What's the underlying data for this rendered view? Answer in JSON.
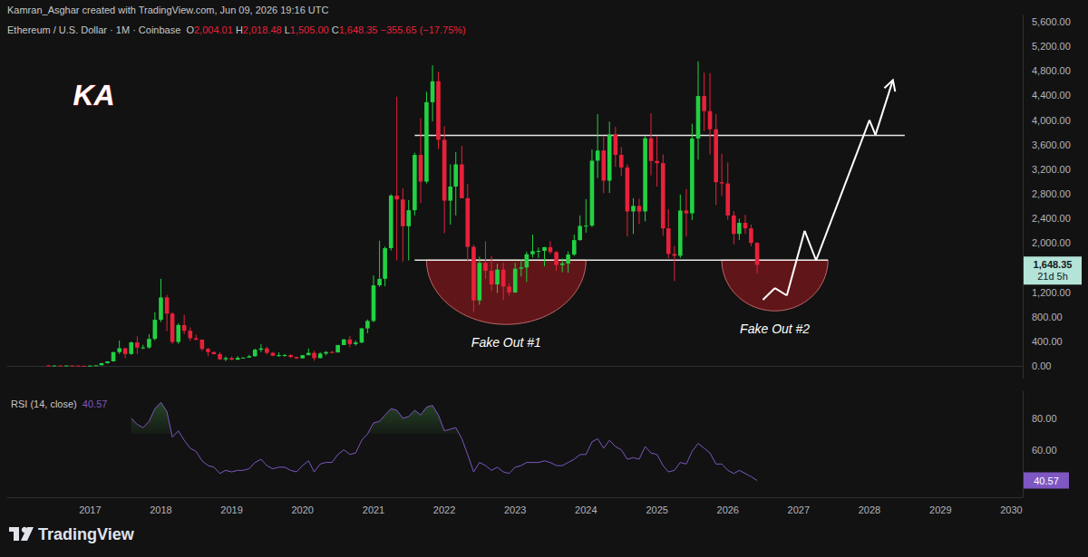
{
  "chart_data": {
    "type": "candlestick",
    "subtitle": "Kamran_Asghar created with TradingView.com, Jun 09, 2026 19:16 UTC",
    "title": "Ethereum / U.S. Dollar · 1M · Coinbase",
    "ohlc_header": [
      {
        "key": "O",
        "value": "2,004.01"
      },
      {
        "key": "H",
        "value": "2,018.48"
      },
      {
        "key": "L",
        "value": "1,505.00"
      },
      {
        "key": "C",
        "value": "1,648.35"
      }
    ],
    "change_label": "−355.65 (−17.75%)",
    "up_color": "#22d142",
    "down_color": "#e8213a",
    "grid": false,
    "x": [
      "2016-06",
      "2016-07",
      "2016-08",
      "2016-09",
      "2016-10",
      "2016-11",
      "2016-12",
      "2017-01",
      "2017-02",
      "2017-03",
      "2017-04",
      "2017-05",
      "2017-06",
      "2017-07",
      "2017-08",
      "2017-09",
      "2017-10",
      "2017-11",
      "2017-12",
      "2018-01",
      "2018-02",
      "2018-03",
      "2018-04",
      "2018-05",
      "2018-06",
      "2018-07",
      "2018-08",
      "2018-09",
      "2018-10",
      "2018-11",
      "2018-12",
      "2019-01",
      "2019-02",
      "2019-03",
      "2019-04",
      "2019-05",
      "2019-06",
      "2019-07",
      "2019-08",
      "2019-09",
      "2019-10",
      "2019-11",
      "2019-12",
      "2020-01",
      "2020-02",
      "2020-03",
      "2020-04",
      "2020-05",
      "2020-06",
      "2020-07",
      "2020-08",
      "2020-09",
      "2020-10",
      "2020-11",
      "2020-12",
      "2021-01",
      "2021-02",
      "2021-03",
      "2021-04",
      "2021-05",
      "2021-06",
      "2021-07",
      "2021-08",
      "2021-09",
      "2021-10",
      "2021-11",
      "2021-12",
      "2022-01",
      "2022-02",
      "2022-03",
      "2022-04",
      "2022-05",
      "2022-06",
      "2022-07",
      "2022-08",
      "2022-09",
      "2022-10",
      "2022-11",
      "2022-12",
      "2023-01",
      "2023-02",
      "2023-03",
      "2023-04",
      "2023-05",
      "2023-06",
      "2023-07",
      "2023-08",
      "2023-09",
      "2023-10",
      "2023-11",
      "2023-12",
      "2024-01",
      "2024-02",
      "2024-03",
      "2024-04",
      "2024-05",
      "2024-06",
      "2024-07",
      "2024-08",
      "2024-09",
      "2024-10",
      "2024-11",
      "2024-12",
      "2025-01",
      "2025-02",
      "2025-03",
      "2025-04",
      "2025-05",
      "2025-06",
      "2025-07",
      "2025-08",
      "2025-09",
      "2025-10",
      "2025-11",
      "2025-12",
      "2026-01",
      "2026-02",
      "2026-03",
      "2026-04",
      "2026-05",
      "2026-06"
    ],
    "ohlc": [
      [
        14.0,
        21.5,
        11.3,
        12.4
      ],
      [
        12.4,
        14.9,
        9.9,
        12.6
      ],
      [
        12.6,
        12.8,
        10.0,
        11.2
      ],
      [
        11.2,
        13.5,
        11.0,
        13.1
      ],
      [
        13.1,
        13.3,
        10.2,
        11.0
      ],
      [
        11.0,
        11.3,
        8.4,
        8.6
      ],
      [
        8.6,
        9.0,
        6.0,
        8.0
      ],
      [
        8.0,
        11.4,
        7.8,
        10.7
      ],
      [
        10.7,
        16.2,
        10.4,
        16.1
      ],
      [
        16.1,
        55.0,
        15.8,
        50.6
      ],
      [
        50.6,
        82.0,
        43.0,
        80.0
      ],
      [
        80,
        235,
        77,
        230
      ],
      [
        230,
        420,
        200,
        292
      ],
      [
        292,
        300,
        130,
        200
      ],
      [
        200,
        400,
        185,
        388
      ],
      [
        388,
        485,
        200,
        303
      ],
      [
        303,
        350,
        280,
        305
      ],
      [
        305,
        520,
        285,
        445
      ],
      [
        445,
        880,
        420,
        755
      ],
      [
        755,
        1420,
        720,
        1118
      ],
      [
        1118,
        1160,
        570,
        855
      ],
      [
        855,
        880,
        365,
        395
      ],
      [
        395,
        700,
        365,
        670
      ],
      [
        670,
        835,
        520,
        577
      ],
      [
        577,
        630,
        410,
        455
      ],
      [
        455,
        515,
        420,
        433
      ],
      [
        433,
        435,
        250,
        282
      ],
      [
        282,
        300,
        167,
        232
      ],
      [
        232,
        235,
        190,
        198
      ],
      [
        198,
        225,
        100,
        113
      ],
      [
        113,
        160,
        81,
        133
      ],
      [
        133,
        160,
        100,
        107
      ],
      [
        107,
        165,
        102,
        136
      ],
      [
        136,
        145,
        126,
        141
      ],
      [
        141,
        185,
        140,
        162
      ],
      [
        162,
        285,
        158,
        268
      ],
      [
        268,
        362,
        230,
        290
      ],
      [
        290,
        320,
        192,
        218
      ],
      [
        218,
        236,
        162,
        172
      ],
      [
        172,
        225,
        152,
        180
      ],
      [
        180,
        198,
        155,
        182
      ],
      [
        182,
        195,
        135,
        151
      ],
      [
        151,
        155,
        116,
        129
      ],
      [
        129,
        185,
        127,
        180
      ],
      [
        180,
        288,
        180,
        218
      ],
      [
        218,
        253,
        90,
        133
      ],
      [
        133,
        228,
        128,
        206
      ],
      [
        206,
        246,
        177,
        231
      ],
      [
        231,
        252,
        216,
        225
      ],
      [
        225,
        348,
        222,
        345
      ],
      [
        345,
        445,
        343,
        435
      ],
      [
        435,
        490,
        308,
        360
      ],
      [
        360,
        420,
        335,
        386
      ],
      [
        386,
        620,
        373,
        616
      ],
      [
        616,
        760,
        535,
        737
      ],
      [
        737,
        1475,
        715,
        1315
      ],
      [
        1315,
        2040,
        1290,
        1420
      ],
      [
        1420,
        1945,
        1300,
        1918
      ],
      [
        1918,
        2795,
        1880,
        2773
      ],
      [
        2773,
        4380,
        1720,
        2710
      ],
      [
        2710,
        2890,
        1700,
        2275
      ],
      [
        2275,
        2700,
        1720,
        2535
      ],
      [
        2535,
        3470,
        2450,
        3433
      ],
      [
        3433,
        4030,
        2650,
        3000
      ],
      [
        3000,
        4460,
        2970,
        4290
      ],
      [
        4290,
        4890,
        3980,
        4630
      ],
      [
        4630,
        4780,
        3530,
        3680
      ],
      [
        3680,
        3900,
        2160,
        2690
      ],
      [
        2690,
        3280,
        2300,
        2920
      ],
      [
        2920,
        3480,
        2450,
        3280
      ],
      [
        3280,
        3580,
        2770,
        2730
      ],
      [
        2730,
        2960,
        1700,
        1940
      ],
      [
        1940,
        1975,
        880,
        1070
      ],
      [
        1070,
        1780,
        1000,
        1680
      ],
      [
        1680,
        2030,
        1420,
        1550
      ],
      [
        1550,
        1790,
        1220,
        1330
      ],
      [
        1330,
        1665,
        1190,
        1570
      ],
      [
        1570,
        1680,
        1075,
        1295
      ],
      [
        1295,
        1350,
        1150,
        1200
      ],
      [
        1200,
        1680,
        1190,
        1585
      ],
      [
        1585,
        1740,
        1460,
        1605
      ],
      [
        1605,
        1860,
        1370,
        1820
      ],
      [
        1820,
        2140,
        1765,
        1870
      ],
      [
        1870,
        1930,
        1760,
        1875
      ],
      [
        1875,
        1940,
        1625,
        1935
      ],
      [
        1935,
        2030,
        1825,
        1855
      ],
      [
        1855,
        1870,
        1550,
        1645
      ],
      [
        1645,
        1750,
        1530,
        1670
      ],
      [
        1670,
        1865,
        1520,
        1815
      ],
      [
        1815,
        2140,
        1790,
        2050
      ],
      [
        2050,
        2450,
        2040,
        2280
      ],
      [
        2280,
        2715,
        2170,
        2285
      ],
      [
        2285,
        3520,
        2260,
        3340
      ],
      [
        3340,
        4095,
        3060,
        3505
      ],
      [
        3505,
        3730,
        2810,
        3015
      ],
      [
        3015,
        3975,
        2815,
        3765
      ],
      [
        3765,
        3890,
        3240,
        3435
      ],
      [
        3435,
        3560,
        3090,
        3230
      ],
      [
        3230,
        3280,
        2110,
        2515
      ],
      [
        2515,
        2730,
        2150,
        2605
      ],
      [
        2605,
        2720,
        2310,
        2515
      ],
      [
        2515,
        3740,
        2355,
        3705
      ],
      [
        3705,
        4110,
        3100,
        3335
      ],
      [
        3335,
        3745,
        2920,
        3300
      ],
      [
        3300,
        3440,
        2120,
        2240
      ],
      [
        2240,
        2550,
        1755,
        1825
      ],
      [
        1825,
        1955,
        1385,
        1795
      ],
      [
        1795,
        2790,
        1760,
        2530
      ],
      [
        2530,
        2880,
        2110,
        2485
      ],
      [
        2485,
        3940,
        2375,
        3700
      ],
      [
        3700,
        4955,
        3355,
        4390
      ],
      [
        4390,
        4770,
        3820,
        4145
      ],
      [
        4145,
        4760,
        3440,
        3850
      ],
      [
        3850,
        4100,
        2620,
        2990
      ],
      [
        2990,
        3450,
        2770,
        2970
      ],
      [
        2970,
        3310,
        2380,
        2450
      ],
      [
        2450,
        2520,
        1980,
        2150
      ],
      [
        2150,
        2400,
        2050,
        2330
      ],
      [
        2330,
        2460,
        2150,
        2240
      ],
      [
        2240,
        2300,
        1950,
        2004.01
      ],
      [
        2004.01,
        2018.48,
        1505,
        1648.35
      ]
    ],
    "xlim": [
      "2015-11",
      "2030-03"
    ],
    "xticks": [
      {
        "value": "2017-01",
        "label": "2017"
      },
      {
        "value": "2018-01",
        "label": "2018"
      },
      {
        "value": "2019-01",
        "label": "2019"
      },
      {
        "value": "2020-01",
        "label": "2020"
      },
      {
        "value": "2021-01",
        "label": "2021"
      },
      {
        "value": "2022-01",
        "label": "2022"
      },
      {
        "value": "2023-01",
        "label": "2023"
      },
      {
        "value": "2024-01",
        "label": "2024"
      },
      {
        "value": "2025-01",
        "label": "2025"
      },
      {
        "value": "2026-01",
        "label": "2026"
      },
      {
        "value": "2027-01",
        "label": "2027"
      },
      {
        "value": "2028-01",
        "label": "2028"
      },
      {
        "value": "2029-01",
        "label": "2029"
      },
      {
        "value": "2030-01",
        "label": "2030"
      }
    ],
    "ylim": [
      -200,
      5700
    ],
    "yticks": [
      {
        "value": 0,
        "label": "0.00"
      },
      {
        "value": 400,
        "label": "400.00"
      },
      {
        "value": 800,
        "label": "800.00"
      },
      {
        "value": 1200,
        "label": "1,200.00"
      },
      {
        "value": 2000,
        "label": "2,000.00"
      },
      {
        "value": 2400,
        "label": "2,400.00"
      },
      {
        "value": 2800,
        "label": "2,800.00"
      },
      {
        "value": 3200,
        "label": "3,200.00"
      },
      {
        "value": 3600,
        "label": "3,600.00"
      },
      {
        "value": 4000,
        "label": "4,000.00"
      },
      {
        "value": 4400,
        "label": "4,400.00"
      },
      {
        "value": 4800,
        "label": "4,800.00"
      },
      {
        "value": 5200,
        "label": "5,200.00"
      },
      {
        "value": 5600,
        "label": "5,600.00"
      }
    ],
    "last_price_label": "1,648.35",
    "countdown_label": "21d 5h",
    "levels": [
      {
        "value": 3750,
        "start": "2021-08",
        "end": "2028-07"
      },
      {
        "value": 1725,
        "start": "2021-08",
        "end": "2027-06"
      }
    ],
    "zones": [
      {
        "label": "Fake Out #1",
        "start": "2021-10",
        "end": "2024-01",
        "top": 1725,
        "bottom": 680
      },
      {
        "label": "Fake Out #2",
        "start": "2025-12",
        "end": "2027-06",
        "top": 1725,
        "bottom": 900
      }
    ],
    "projection": {
      "color": "#ffffff",
      "x": [
        "2026-07",
        "2026-09",
        "2026-11",
        "2027-02",
        "2027-04",
        "2028-01",
        "2028-02",
        "2028-05"
      ],
      "values": [
        1080,
        1270,
        1150,
        2200,
        1720,
        4000,
        3760,
        4650
      ]
    },
    "rsi": {
      "title": "RSI (14, close)",
      "value_label": "40.57",
      "color": "#7e57c2",
      "overbought": 70,
      "ylim": [
        30,
        97
      ],
      "yticks": [
        {
          "value": 60,
          "label": "60.00"
        },
        {
          "value": 80,
          "label": "80.00"
        }
      ],
      "values": [
        null,
        null,
        null,
        null,
        null,
        null,
        null,
        null,
        null,
        null,
        null,
        null,
        null,
        null,
        80,
        76,
        74,
        78,
        86,
        90,
        84,
        68,
        72,
        66,
        61,
        59,
        53,
        50,
        49,
        45,
        47,
        46,
        47,
        47,
        48,
        52,
        54,
        50,
        48,
        49,
        49,
        47,
        46,
        50,
        53,
        46,
        51,
        52,
        52,
        57,
        60,
        57,
        58,
        66,
        70,
        77,
        78,
        82,
        86,
        85,
        80,
        81,
        85,
        82,
        87,
        88,
        82,
        72,
        73,
        74,
        67,
        57,
        46,
        52,
        50,
        47,
        49,
        46,
        45,
        49,
        50,
        52,
        52,
        52,
        53,
        52,
        50,
        50,
        52,
        54,
        57,
        57,
        65,
        67,
        61,
        66,
        62,
        60,
        54,
        55,
        54,
        62,
        58,
        57,
        50,
        46,
        47,
        52,
        51,
        59,
        64,
        61,
        58,
        51,
        51,
        47,
        45,
        47,
        45,
        43,
        40.57
      ]
    },
    "logo_text": "KA",
    "watermark": "TradingView"
  }
}
